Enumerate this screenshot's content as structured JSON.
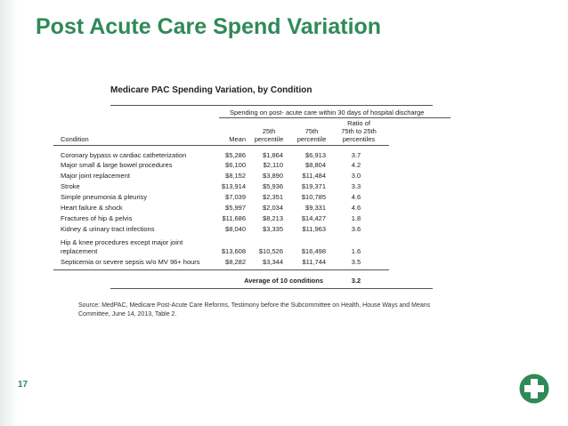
{
  "slide": {
    "title": "Post Acute Care Spend Variation",
    "page_number": "17",
    "logo_icon": "green-cross-logo"
  },
  "table": {
    "title": "Medicare PAC Spending Variation, by Condition",
    "group_header": "Spending on post- acute care within 30 days of hospital discharge",
    "columns": {
      "condition": "Condition",
      "mean": "Mean",
      "p25_line1": "25th",
      "p25_line2": "percentile",
      "p75_line1": "75th",
      "p75_line2": "percentile",
      "ratio_line1": "Ratio of",
      "ratio_line2": "75th to 25th",
      "ratio_line3": "percentiles"
    },
    "rows": [
      {
        "condition": "Coronary bypass w cardiac catheterization",
        "mean": "$5,286",
        "p25": "$1,864",
        "p75": "$6,913",
        "ratio": "3.7"
      },
      {
        "condition": "Major small & large bowel procedures",
        "mean": "$6,100",
        "p25": "$2,110",
        "p75": "$8,804",
        "ratio": "4.2"
      },
      {
        "condition": "Major joint replacement",
        "mean": "$8,152",
        "p25": "$3,890",
        "p75": "$11,484",
        "ratio": "3.0"
      },
      {
        "condition": "Stroke",
        "mean": "$13,914",
        "p25": "$5,936",
        "p75": "$19,371",
        "ratio": "3.3"
      },
      {
        "condition": "Simple pneumonia & pleurisy",
        "mean": "$7,039",
        "p25": "$2,351",
        "p75": "$10,785",
        "ratio": "4.6"
      },
      {
        "condition": "Heart failure & shock",
        "mean": "$5,997",
        "p25": "$2,034",
        "p75": "$9,331",
        "ratio": "4.6"
      },
      {
        "condition": "Fractures of hip & pelvis",
        "mean": "$11,686",
        "p25": "$8,213",
        "p75": "$14,427",
        "ratio": "1.8"
      },
      {
        "condition": "Kidney & urinary tract infections",
        "mean": "$8,040",
        "p25": "$3,335",
        "p75": "$11,963",
        "ratio": "3.6"
      },
      {
        "condition_line1": "Hip & knee procedures except major joint",
        "condition": "replacement",
        "mean": "$13,608",
        "p25": "$10,526",
        "p75": "$16,498",
        "ratio": "1.6"
      },
      {
        "condition": "Septicemia or severe sepsis w/o MV 96+ hours",
        "mean": "$8,282",
        "p25": "$3,344",
        "p75": "$11,744",
        "ratio": "3.5"
      }
    ],
    "average_label": "Average of 10 conditions",
    "average_value": "3.2",
    "source": "Source: MedPAC, Medicare Post-Acute Care Reforms, Testimony before the Subcommittee on Health, House Ways and Means Committee, June 14, 2013, Table 2."
  }
}
